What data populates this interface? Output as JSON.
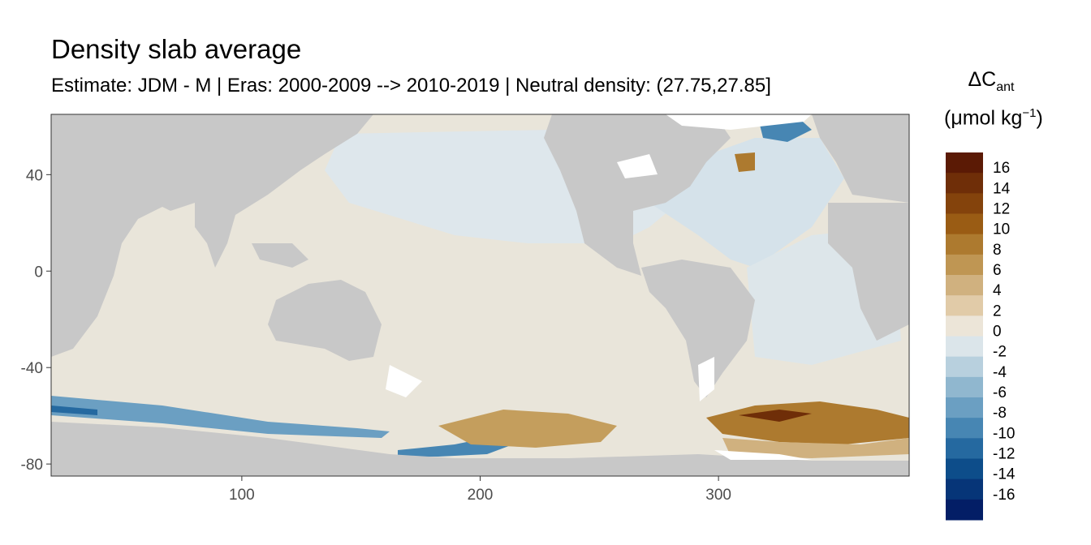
{
  "title": "Density slab average",
  "subtitle": "Estimate: JDM - M | Eras: 2000-2009 --> 2010-2019 | Neutral density: (27.75,27.85]",
  "axes": {
    "x_ticks": [
      100,
      200,
      300
    ],
    "x_tick_labels": [
      "100",
      "200",
      "300"
    ],
    "y_ticks": [
      40,
      0,
      -40,
      -80
    ],
    "y_tick_labels": [
      "40",
      "0",
      "-40",
      "-80"
    ],
    "xlim": [
      20,
      380
    ],
    "ylim": [
      -85,
      65
    ]
  },
  "legend": {
    "title_symbol": "ΔC",
    "title_subscript": "ant",
    "units_prefix": "(μmol kg",
    "units_exponent": "−1",
    "units_suffix": ")",
    "labels": [
      "16",
      "14",
      "12",
      "10",
      "8",
      "6",
      "4",
      "2",
      "0",
      "-2",
      "-4",
      "-6",
      "-8",
      "-10",
      "-12",
      "-14",
      "-16"
    ],
    "colors": [
      "#5b1a05",
      "#6f2e08",
      "#84430c",
      "#9a5c14",
      "#ad7a2f",
      "#bf9653",
      "#d0b17f",
      "#e1cba8",
      "#ece5d8",
      "#dbe5ea",
      "#b8d0de",
      "#90b7cf",
      "#6b9fc2",
      "#4786b3",
      "#2569a0",
      "#0d4d8a",
      "#063578",
      "#031e66"
    ]
  },
  "colors": {
    "land": "#c8c8c8",
    "ocean_base": "#e9e5da",
    "pacific_north": "#dee7ec",
    "no_data": "#ffffff"
  }
}
